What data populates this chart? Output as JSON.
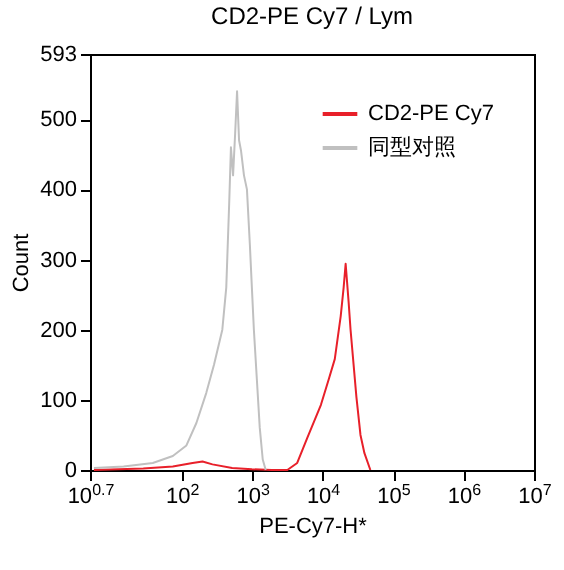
{
  "chart_data": {
    "type": "line",
    "title": "CD2-PE Cy7 / Lym",
    "xlabel": "PE-Cy7-H*",
    "ylabel": "Count",
    "log": "x",
    "xlim": [
      5.012,
      10000000
    ],
    "xticks": [
      {
        "value": 5.012,
        "label": "10$^{0.7}$"
      },
      {
        "value": 100,
        "label": "10$^{2}$"
      },
      {
        "value": 1000,
        "label": "10$^{3}$"
      },
      {
        "value": 10000,
        "label": "10$^{4}$"
      },
      {
        "value": 100000,
        "label": "10$^{5}$"
      },
      {
        "value": 1000000,
        "label": "10$^{6}$"
      },
      {
        "value": 10000000,
        "label": "10$^{7}$"
      }
    ],
    "ylim": [
      0,
      593
    ],
    "yticks": [
      0,
      100,
      200,
      300,
      400,
      500,
      593
    ],
    "grid": false,
    "legend": "top right",
    "marker": "none",
    "line_style": "solid",
    "series": [
      {
        "name": "CD2-PE Cy7",
        "color": "#e8202a",
        "x": [
          5.7,
          28.6,
          75,
          143,
          198,
          274,
          521,
          993,
          1892,
          3162,
          4365,
          6030,
          9480,
          12300,
          14900,
          18070,
          19900,
          21250,
          23400,
          24950,
          30220,
          34500,
          39270,
          47650
        ],
        "values": [
          0,
          2,
          5,
          10,
          12,
          8,
          3,
          1,
          0,
          0,
          10,
          45,
          93,
          130,
          158,
          219,
          260,
          294,
          240,
          200,
          104,
          50,
          24,
          0
        ]
      },
      {
        "name": "同型对照",
        "color": "#c0c0c0",
        "x": [
          5.7,
          15,
          39,
          75,
          117,
          162,
          224,
          288,
          378,
          430,
          473,
          501,
          537,
          575,
          612,
          653,
          697,
          767,
          845,
          931,
          993,
          1060,
          1167,
          1285,
          1416,
          1560
        ],
        "values": [
          3,
          5,
          10,
          20,
          35,
          67,
          110,
          150,
          200,
          260,
          380,
          460,
          420,
          480,
          540,
          470,
          455,
          420,
          400,
          320,
          260,
          200,
          130,
          60,
          15,
          0
        ]
      }
    ]
  }
}
